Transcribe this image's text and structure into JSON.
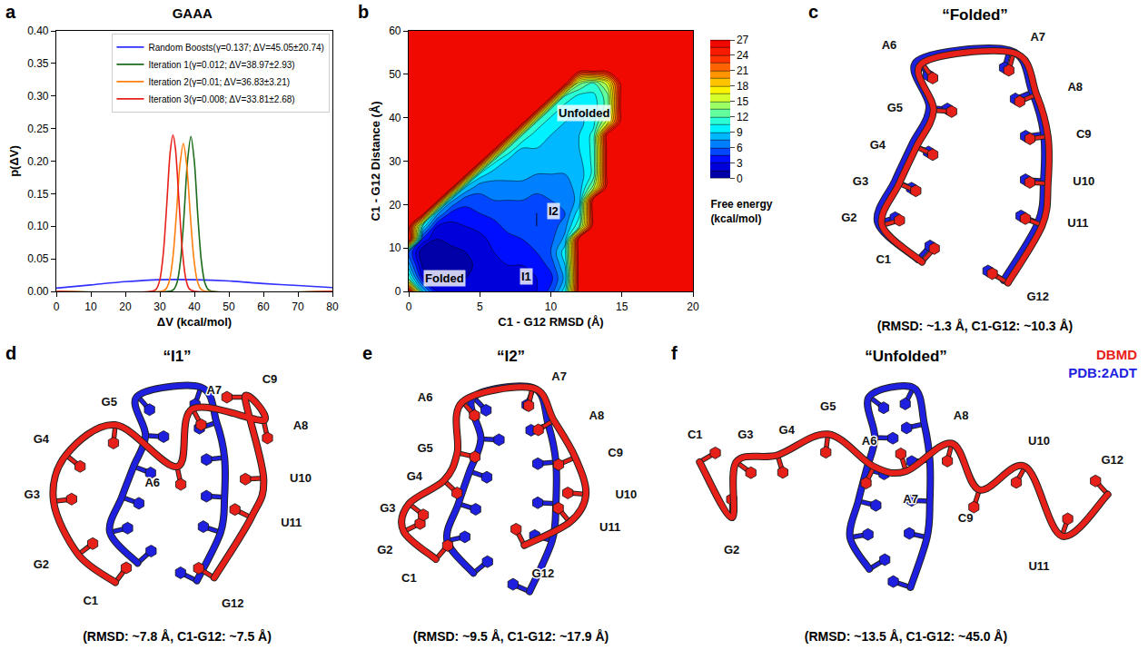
{
  "chart_data": [
    {
      "type": "line",
      "title": "GAAA",
      "x_label": "ΔV (kcal/mol)",
      "y_label": "p(ΔV)",
      "series": [
        {
          "name": "Random Boosts(γ=0.137; ΔV=45.05±20.74)",
          "color": "#3030ff",
          "x": [
            0,
            10,
            20,
            30,
            40,
            50,
            60,
            70,
            80
          ],
          "values": [
            0.005,
            0.01,
            0.015,
            0.018,
            0.018,
            0.016,
            0.012,
            0.009,
            0.006
          ]
        },
        {
          "name": "Iteration 1(γ=0.012; ΔV=38.97±2.93)",
          "color": "#1b6b1b",
          "x": [
            0,
            33,
            34,
            35,
            36,
            37,
            38,
            39,
            40,
            41,
            42,
            43,
            44,
            45,
            80
          ],
          "values": [
            0,
            0.0004,
            0.003,
            0.014,
            0.048,
            0.116,
            0.199,
            0.238,
            0.199,
            0.116,
            0.048,
            0.014,
            0.003,
            0.0004,
            0
          ]
        },
        {
          "name": "Iteration 2(γ=0.01; ΔV=36.83±3.21)",
          "color": "#ff7f0e",
          "x": [
            0,
            30.8,
            31.8,
            32.8,
            33.8,
            34.8,
            35.8,
            36.8,
            37.8,
            38.8,
            39.8,
            40.8,
            41.8,
            42.8,
            80
          ],
          "values": [
            0,
            0.0007,
            0.004,
            0.017,
            0.053,
            0.119,
            0.193,
            0.227,
            0.193,
            0.119,
            0.053,
            0.017,
            0.004,
            0.0007,
            0
          ]
        },
        {
          "name": "Iteration 3(γ=0.008; ΔV=33.81±2.68)",
          "color": "#e8201a",
          "x": [
            0,
            28,
            29,
            30,
            31,
            32,
            33,
            33.8,
            34.5,
            35.5,
            36.5,
            37.5,
            38.5,
            40,
            80
          ],
          "values": [
            0,
            0.0005,
            0.004,
            0.018,
            0.058,
            0.133,
            0.214,
            0.24,
            0.22,
            0.142,
            0.064,
            0.02,
            0.004,
            0.0002,
            0
          ]
        }
      ],
      "xlim": [
        0,
        80
      ],
      "xticks": [
        0,
        10,
        20,
        30,
        40,
        50,
        60,
        70,
        80
      ],
      "ylim": [
        0,
        0.4
      ],
      "yticks": [
        {
          "value": 0,
          "label": "0.00"
        },
        {
          "value": 0.05,
          "label": "0.05"
        },
        {
          "value": 0.1,
          "label": "0.10"
        },
        {
          "value": 0.15,
          "label": "0.15"
        },
        {
          "value": 0.2,
          "label": "0.20"
        },
        {
          "value": 0.25,
          "label": "0.25"
        },
        {
          "value": 0.3,
          "label": "0.30"
        },
        {
          "value": 0.35,
          "label": "0.35"
        },
        {
          "value": 0.4,
          "label": "0.40"
        }
      ],
      "legend": "upper right",
      "grid": false
    },
    {
      "type": "contour",
      "x_label": "C1 - G12 RMSD (Å)",
      "y_label": "C1 - G12 Distance (Å)",
      "x": [
        0,
        1,
        2,
        3,
        4,
        5,
        6,
        7,
        8,
        9,
        10,
        11,
        12,
        13,
        14,
        15,
        16,
        17,
        18,
        19,
        20
      ],
      "y": [
        0,
        3,
        6,
        9,
        12,
        15,
        18,
        21,
        24,
        27,
        30,
        33,
        36,
        39,
        42,
        45,
        48,
        51,
        54,
        57,
        60
      ],
      "z": [
        [
          27,
          9,
          3,
          2,
          2,
          3,
          3,
          3,
          2,
          3,
          5,
          10,
          27,
          27,
          27,
          27,
          27,
          27,
          27,
          27,
          27
        ],
        [
          12,
          3,
          1,
          1,
          1.5,
          2,
          2,
          2.5,
          2,
          3,
          4,
          8,
          27,
          27,
          27,
          27,
          27,
          27,
          27,
          27,
          27
        ],
        [
          8,
          1,
          0.5,
          1,
          1,
          2,
          2.5,
          3,
          3,
          3.5,
          5,
          9,
          27,
          27,
          27,
          27,
          27,
          27,
          27,
          27,
          27
        ],
        [
          6,
          0,
          0.5,
          1,
          1.5,
          2,
          3,
          3.5,
          4,
          4.5,
          6,
          10,
          27,
          27,
          27,
          27,
          27,
          27,
          27,
          27,
          27
        ],
        [
          27,
          4,
          1.5,
          2,
          2,
          2.5,
          3.5,
          4,
          4.5,
          5,
          5.5,
          8,
          27,
          27,
          27,
          27,
          27,
          27,
          27,
          27,
          27
        ],
        [
          27,
          10,
          3,
          2.5,
          3,
          3.5,
          4,
          5,
          5,
          4.5,
          5,
          7,
          12,
          27,
          27,
          27,
          27,
          27,
          27,
          27,
          27
        ],
        [
          27,
          27,
          8,
          4,
          4,
          4.5,
          5,
          5.5,
          5,
          4.5,
          5,
          6,
          10,
          27,
          27,
          27,
          27,
          27,
          27,
          27,
          27
        ],
        [
          27,
          27,
          27,
          8,
          5,
          5.5,
          6,
          6,
          6,
          5.5,
          6,
          6.5,
          8,
          27,
          27,
          27,
          27,
          27,
          27,
          27,
          27
        ],
        [
          27,
          27,
          27,
          27,
          9,
          6.5,
          7,
          7,
          7,
          6.5,
          7,
          7,
          8,
          14,
          27,
          27,
          27,
          27,
          27,
          27,
          27
        ],
        [
          27,
          27,
          27,
          27,
          27,
          10,
          8,
          8,
          8,
          7.5,
          7.5,
          7.5,
          8,
          11,
          27,
          27,
          27,
          27,
          27,
          27,
          27
        ],
        [
          27,
          27,
          27,
          27,
          27,
          27,
          11,
          8.5,
          8.5,
          8,
          8,
          8,
          8.5,
          11,
          27,
          27,
          27,
          27,
          27,
          27,
          27
        ],
        [
          27,
          27,
          27,
          27,
          27,
          27,
          27,
          12,
          9,
          9,
          8.5,
          8.5,
          9,
          11,
          27,
          27,
          27,
          27,
          27,
          27,
          27
        ],
        [
          27,
          27,
          27,
          27,
          27,
          27,
          27,
          27,
          12,
          9.5,
          9,
          8.5,
          9,
          11,
          27,
          27,
          27,
          27,
          27,
          27,
          27
        ],
        [
          27,
          27,
          27,
          27,
          27,
          27,
          27,
          27,
          27,
          12,
          9.5,
          9,
          8.5,
          10,
          16,
          27,
          27,
          27,
          27,
          27,
          27
        ],
        [
          27,
          27,
          27,
          27,
          27,
          27,
          27,
          27,
          27,
          27,
          12,
          9.5,
          9,
          9.5,
          13,
          27,
          27,
          27,
          27,
          27,
          27
        ],
        [
          27,
          27,
          27,
          27,
          27,
          27,
          27,
          27,
          27,
          27,
          27,
          12,
          10,
          10,
          13,
          27,
          27,
          27,
          27,
          27,
          27
        ],
        [
          27,
          27,
          27,
          27,
          27,
          27,
          27,
          27,
          27,
          27,
          27,
          27,
          14,
          12,
          16,
          27,
          27,
          27,
          27,
          27,
          27
        ],
        [
          27,
          27,
          27,
          27,
          27,
          27,
          27,
          27,
          27,
          27,
          27,
          27,
          27,
          27,
          27,
          27,
          27,
          27,
          27,
          27,
          27
        ],
        [
          27,
          27,
          27,
          27,
          27,
          27,
          27,
          27,
          27,
          27,
          27,
          27,
          27,
          27,
          27,
          27,
          27,
          27,
          27,
          27,
          27
        ],
        [
          27,
          27,
          27,
          27,
          27,
          27,
          27,
          27,
          27,
          27,
          27,
          27,
          27,
          27,
          27,
          27,
          27,
          27,
          27,
          27,
          27
        ],
        [
          27,
          27,
          27,
          27,
          27,
          27,
          27,
          27,
          27,
          27,
          27,
          27,
          27,
          27,
          27,
          27,
          27,
          27,
          27,
          27,
          27
        ]
      ],
      "xlim": [
        0,
        20
      ],
      "xticks": [
        0,
        5,
        10,
        15,
        20
      ],
      "ylim": [
        0,
        60
      ],
      "yticks": [
        0,
        10,
        20,
        30,
        40,
        50,
        60
      ],
      "colorbar": {
        "title": "Free energy (kcal/mol)",
        "range": [
          0,
          27
        ],
        "ticks": [
          0,
          3,
          6,
          9,
          12,
          15,
          18,
          21,
          24,
          27
        ]
      },
      "annotations": [
        {
          "text": "Folded",
          "x": 2.5,
          "y": 3
        },
        {
          "text": "I1",
          "x": 8.3,
          "y": 3.5
        },
        {
          "text": "I2",
          "x": 10.2,
          "y": 18.5
        },
        {
          "text": "Unfolded",
          "x": 12.3,
          "y": 41
        }
      ],
      "grid": false
    }
  ],
  "panel_letters": [
    "a",
    "b",
    "c",
    "d",
    "e",
    "f"
  ],
  "structures": {
    "nucleotides": [
      "C1",
      "G2",
      "G3",
      "G4",
      "G5",
      "A6",
      "A7",
      "A8",
      "C9",
      "U10",
      "U11",
      "G12"
    ],
    "panels": [
      {
        "title": "“Folded”",
        "caption": "(RMSD: ~1.3 Å, C1-G12: ~10.3 Å)"
      },
      {
        "title": "“I1”",
        "caption": "(RMSD: ~7.8 Å, C1-G12: ~7.5 Å)"
      },
      {
        "title": "“I2”",
        "caption": "(RMSD: ~9.5 Å, C1-G12: ~17.9 Å)"
      },
      {
        "title": "“Unfolded”",
        "caption": "(RMSD: ~13.5 Å, C1-G12: ~45.0 Å)"
      }
    ],
    "legend": [
      {
        "name": "DBMD",
        "color": "#e8201a"
      },
      {
        "name": "PDB:2ADT",
        "color": "#1f1fe0"
      }
    ]
  }
}
